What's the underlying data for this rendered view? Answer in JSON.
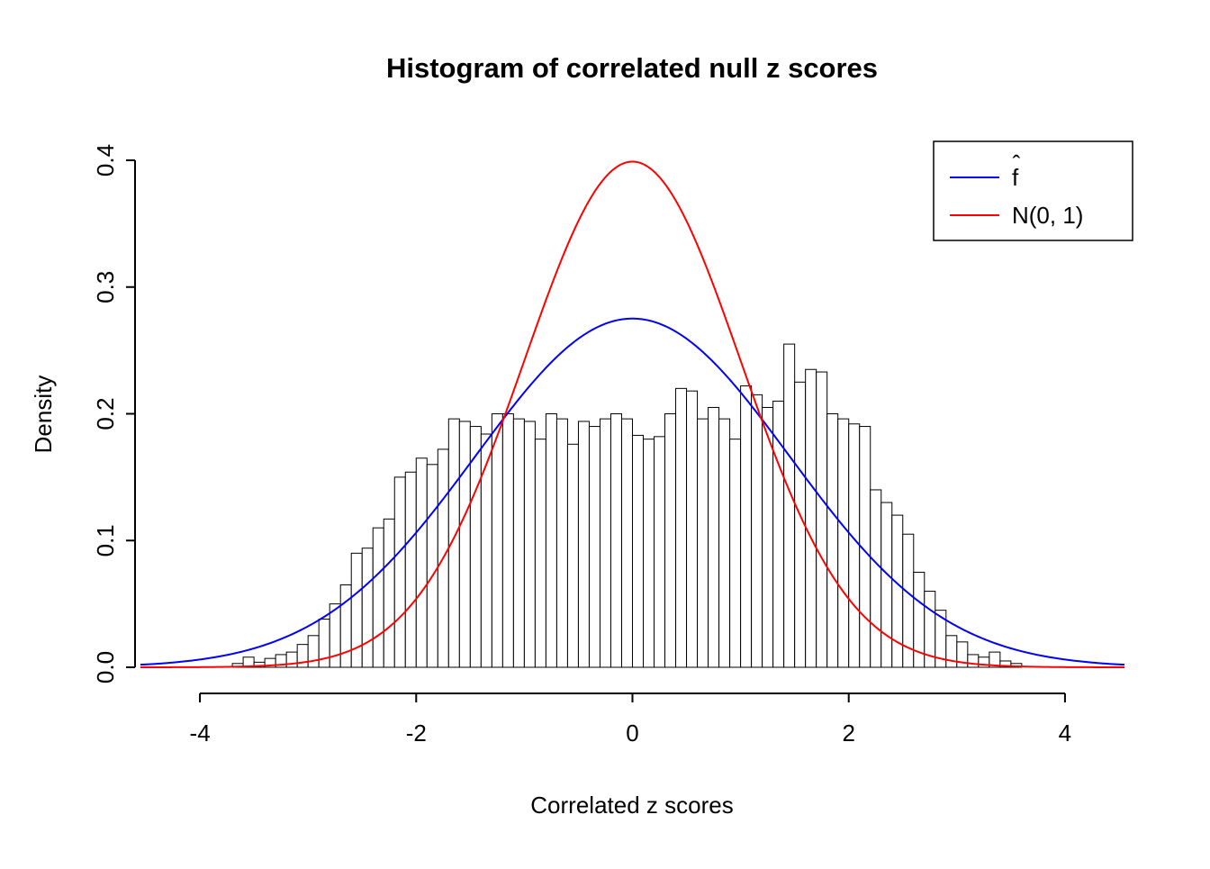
{
  "chart_data": {
    "type": "histogram",
    "title": "Histogram of correlated null z scores",
    "xlabel": "Correlated z scores",
    "ylabel": "Density",
    "xlim": [
      -4.6,
      4.6
    ],
    "ylim": [
      0,
      0.4
    ],
    "x_ticks": [
      -4,
      -2,
      0,
      2,
      4
    ],
    "x_tick_labels": [
      "-4",
      "-2",
      "0",
      "2",
      "4"
    ],
    "y_ticks": [
      0,
      0.1,
      0.2,
      0.3,
      0.4
    ],
    "y_tick_labels": [
      "0.0",
      "0.1",
      "0.2",
      "0.3",
      "0.4"
    ],
    "grid": false,
    "histogram": {
      "bin_start": -3.7,
      "bin_width": 0.1,
      "bar_fill": "#ffffff",
      "bar_stroke": "#000000",
      "densities": [
        0.003,
        0.008,
        0.004,
        0.007,
        0.01,
        0.012,
        0.018,
        0.025,
        0.038,
        0.05,
        0.065,
        0.09,
        0.094,
        0.11,
        0.117,
        0.15,
        0.154,
        0.165,
        0.16,
        0.172,
        0.196,
        0.194,
        0.19,
        0.184,
        0.2,
        0.2,
        0.196,
        0.194,
        0.18,
        0.2,
        0.196,
        0.176,
        0.194,
        0.19,
        0.196,
        0.2,
        0.196,
        0.183,
        0.18,
        0.182,
        0.2,
        0.22,
        0.218,
        0.196,
        0.205,
        0.196,
        0.18,
        0.222,
        0.215,
        0.205,
        0.21,
        0.255,
        0.225,
        0.235,
        0.233,
        0.2,
        0.196,
        0.192,
        0.19,
        0.14,
        0.13,
        0.12,
        0.105,
        0.075,
        0.06,
        0.045,
        0.025,
        0.02,
        0.01,
        0.008,
        0.012,
        0.005,
        0.003
      ]
    },
    "curves": [
      {
        "label": "f",
        "accent": "ˆ",
        "color": "#0000ff",
        "distribution": "normal",
        "mean": 0,
        "sd": 1.45,
        "peak_density": 0.275
      },
      {
        "label": "N(0, 1)",
        "accent": "",
        "color": "#ff0000",
        "distribution": "normal",
        "mean": 0,
        "sd": 1,
        "peak_density": 0.399
      }
    ],
    "legend": {
      "position": "top-right"
    }
  }
}
